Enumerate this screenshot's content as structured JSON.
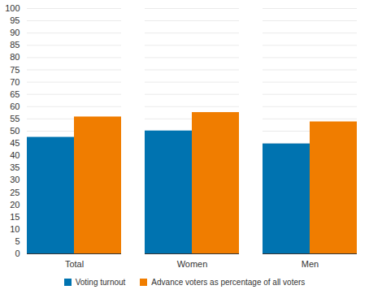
{
  "chart_data": {
    "type": "bar",
    "categories": [
      "Total",
      "Women",
      "Men"
    ],
    "series": [
      {
        "name": "Voting turnout",
        "color": "#0073b0",
        "values": [
          47.5,
          50.1,
          44.8
        ]
      },
      {
        "name": "Advance voters as percentage of all voters",
        "color": "#f07d00",
        "values": [
          55.8,
          57.6,
          53.8
        ]
      }
    ],
    "ylim": [
      0,
      100
    ],
    "yticks": [
      0,
      5,
      10,
      15,
      20,
      25,
      30,
      35,
      40,
      45,
      50,
      55,
      60,
      65,
      70,
      75,
      80,
      85,
      90,
      95,
      100
    ],
    "grid": true,
    "legend": "bottom"
  }
}
